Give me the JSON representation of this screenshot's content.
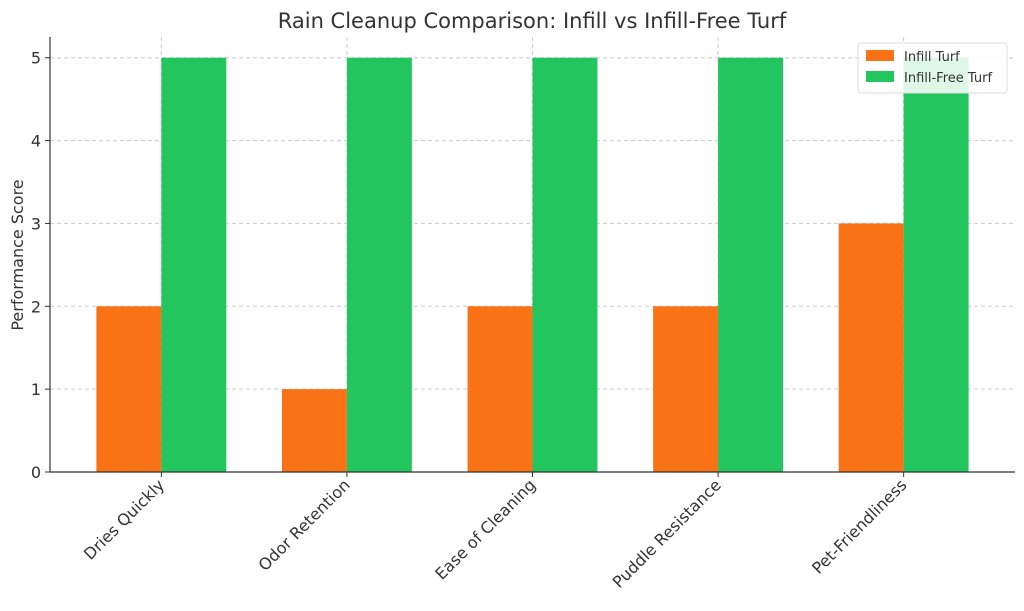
{
  "chart_data": {
    "type": "bar",
    "title": "Rain Cleanup Comparison: Infill vs Infill-Free Turf",
    "xlabel": "",
    "ylabel": "Performance Score",
    "categories": [
      "Dries Quickly",
      "Odor Retention",
      "Ease of Cleaning",
      "Puddle Resistance",
      "Pet-Friendliness"
    ],
    "series": [
      {
        "name": "Infill Turf",
        "color": "#f97316",
        "values": [
          2,
          1,
          2,
          2,
          3
        ]
      },
      {
        "name": "Infill-Free Turf",
        "color": "#22c55e",
        "values": [
          5,
          5,
          5,
          5,
          5
        ]
      }
    ],
    "ylim": [
      0,
      5.25
    ],
    "yticks": [
      "0",
      "1",
      "2",
      "3",
      "4",
      "5"
    ],
    "grid": true,
    "legend_position": "top-right"
  }
}
